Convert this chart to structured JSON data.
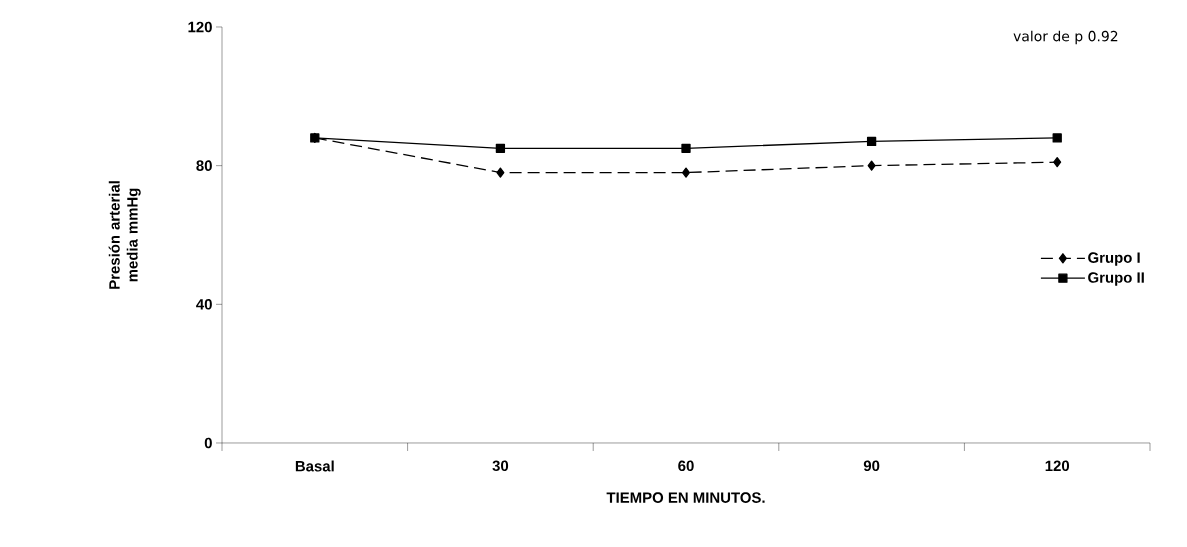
{
  "chart_data": {
    "type": "line",
    "xlabel": "TIEMPO EN MINUTOS.",
    "ylabel": "Presión arterial media mmHg",
    "categories": [
      "Basal",
      "30",
      "60",
      "90",
      "120"
    ],
    "series": [
      {
        "name": "Grupo I",
        "color": "#000000",
        "values": [
          88,
          78,
          78,
          80,
          81
        ],
        "marker": "diamond",
        "line_style": "dashed"
      },
      {
        "name": "Grupo II",
        "color": "#000000",
        "values": [
          88,
          85,
          85,
          87,
          88
        ],
        "marker": "square",
        "line_style": "solid"
      }
    ],
    "ylim": [
      0,
      120
    ],
    "yticks": [
      0,
      40,
      80,
      120
    ],
    "grid": false,
    "legend": "right",
    "annotations": [
      "valor de  p 0.92"
    ]
  }
}
